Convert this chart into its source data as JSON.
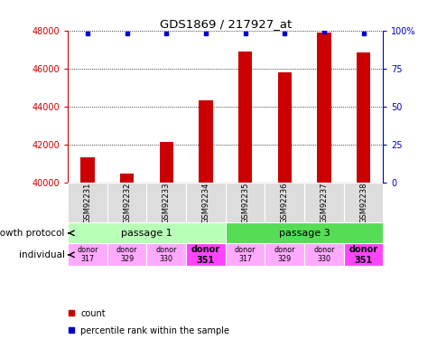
{
  "title": "GDS1869 / 217927_at",
  "samples": [
    "GSM92231",
    "GSM92232",
    "GSM92233",
    "GSM92234",
    "GSM92235",
    "GSM92236",
    "GSM92237",
    "GSM92238"
  ],
  "count_values": [
    41300,
    40450,
    42100,
    44300,
    46900,
    45800,
    47900,
    46850
  ],
  "percentile_values": [
    98,
    98,
    98,
    98,
    98,
    98,
    99,
    98
  ],
  "ylim_left": [
    40000,
    48000
  ],
  "ylim_right": [
    0,
    100
  ],
  "yticks_left": [
    40000,
    42000,
    44000,
    46000,
    48000
  ],
  "yticks_right": [
    0,
    25,
    50,
    75,
    100
  ],
  "bar_color": "#cc0000",
  "dot_color": "#0000cc",
  "left_tick_color": "#cc0000",
  "right_tick_color": "#0000cc",
  "passage1_color": "#b8ffb8",
  "passage3_color": "#55dd55",
  "donor_colors_normal": "#ffaaff",
  "donor_colors_351": "#ff44ff",
  "donor_351_indices": [
    3,
    7
  ],
  "passages": [
    "passage 1",
    "passage 3"
  ],
  "growth_protocol_label": "growth protocol",
  "individual_label": "individual",
  "legend_count": "count",
  "legend_percentile": "percentile rank within the sample",
  "bar_width": 0.35,
  "figsize": [
    4.85,
    3.75
  ],
  "dpi": 100
}
